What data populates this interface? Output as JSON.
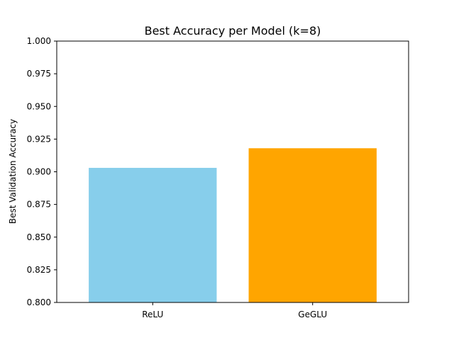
{
  "chart_data": {
    "type": "bar",
    "title": "Best Accuracy per Model (k=8)",
    "xlabel": "",
    "ylabel": "Best Validation Accuracy",
    "categories": [
      "ReLU",
      "GeGLU"
    ],
    "values": [
      0.903,
      0.918
    ],
    "colors": [
      "#87CEEB",
      "#FFA500"
    ],
    "ylim": [
      0.8,
      1.0
    ],
    "yticks": [
      "0.800",
      "0.825",
      "0.850",
      "0.875",
      "0.900",
      "0.925",
      "0.950",
      "0.975",
      "1.000"
    ],
    "grid": false,
    "legend": "none"
  }
}
